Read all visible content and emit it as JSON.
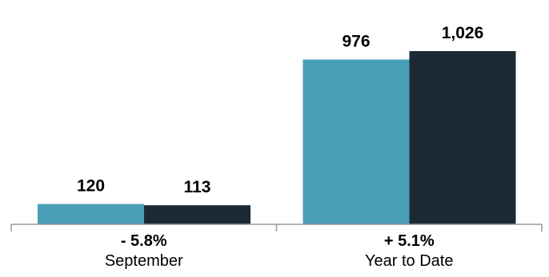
{
  "chart_data": {
    "type": "bar",
    "categories": [
      "September",
      "Year to Date"
    ],
    "category_changes": [
      "- 5.8%",
      "+ 5.1%"
    ],
    "series": [
      {
        "values": [
          120,
          976
        ],
        "color": "#4a9fb8"
      },
      {
        "values": [
          113,
          1026
        ],
        "color": "#1c2b33"
      }
    ],
    "data_labels": [
      [
        "120",
        "976"
      ],
      [
        "113",
        "1,026"
      ]
    ],
    "ylim": [
      0,
      1240
    ],
    "axis_color": "#999999",
    "grid": false,
    "legend": "none"
  }
}
